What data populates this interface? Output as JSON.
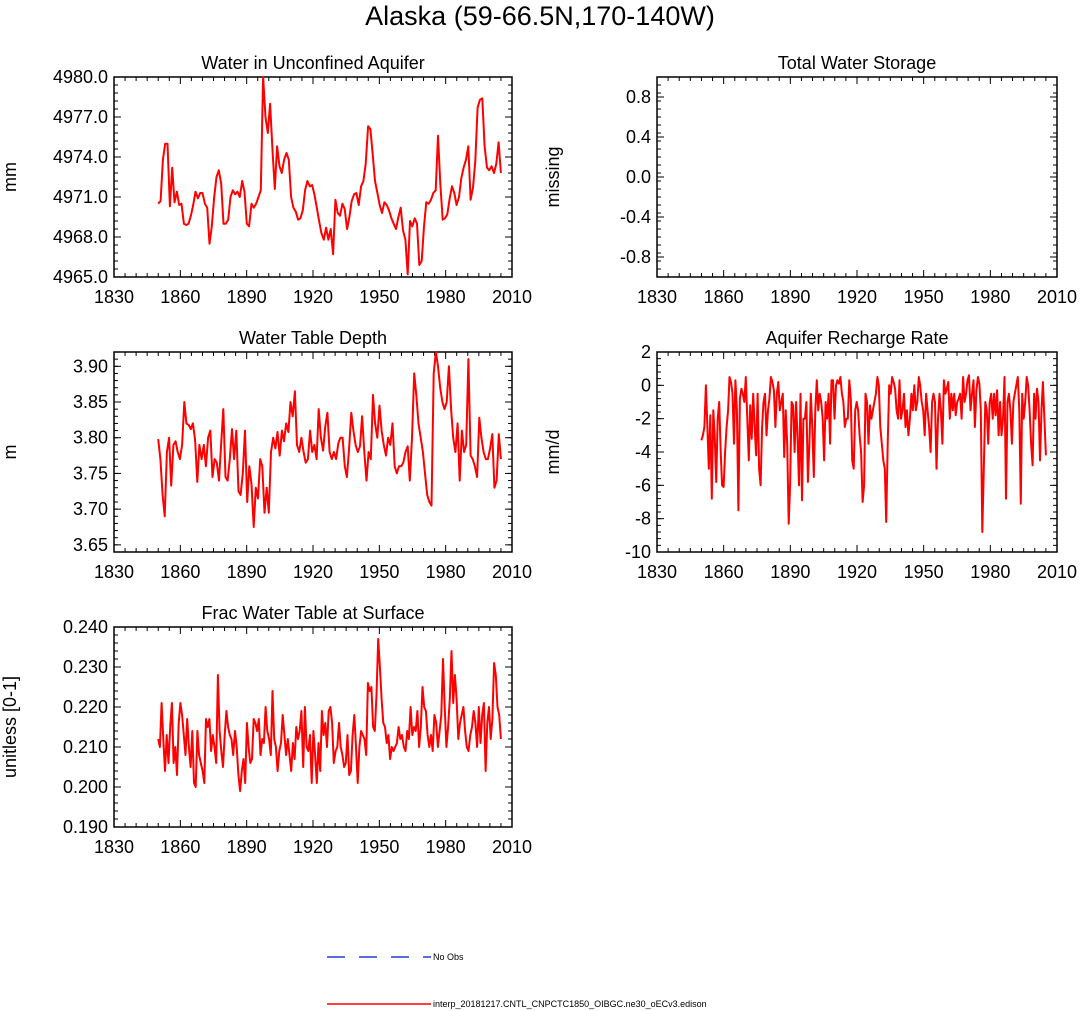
{
  "figure": {
    "title": "Alaska (59-66.5N,170-140W)",
    "legend": [
      {
        "label": "No Obs",
        "style": "dashed",
        "color": "#1f3fd6"
      },
      {
        "label": "interp_20181217.CNTL_CNPCTC1850_OIBGC.ne30_oECv3.edison",
        "style": "solid",
        "color": "#ff0000"
      }
    ]
  },
  "chart_data": [
    {
      "type": "line",
      "title": "Water in Unconfined Aquifer",
      "ylabel": "mm",
      "xlim": [
        1830,
        2010
      ],
      "ylim": [
        4965.0,
        4980.0
      ],
      "xticks": [
        1830,
        1860,
        1890,
        1920,
        1950,
        1980,
        2010
      ],
      "yticks": [
        4965.0,
        4968.0,
        4971.0,
        4974.0,
        4977.0,
        4980.0
      ],
      "ytick_labels": [
        "4965.0",
        "4968.0",
        "4971.0",
        "4974.0",
        "4977.0",
        "4980.0"
      ],
      "series": [
        {
          "name": "interp_20181217.CNTL_CNPCTC1850_OIBGC.ne30_oECv3.edison",
          "color": "#ff0000",
          "x_start": 1850,
          "values": [
            4970.5,
            4970.7,
            4973.8,
            4975.0,
            4975.0,
            4970.3,
            4973.2,
            4970.6,
            4971.4,
            4970.4,
            4970.5,
            4969.0,
            4968.9,
            4969.0,
            4969.6,
            4970.4,
            4971.4,
            4970.9,
            4971.3,
            4971.3,
            4970.5,
            4970.2,
            4967.5,
            4968.8,
            4971.0,
            4972.5,
            4973.0,
            4972.0,
            4969.0,
            4969.0,
            4969.3,
            4971.0,
            4971.5,
            4971.2,
            4971.4,
            4971.0,
            4972.2,
            4971.4,
            4969.0,
            4968.8,
            4970.5,
            4970.2,
            4970.5,
            4971.0,
            4971.5,
            4980.0,
            4977.0,
            4975.8,
            4978.0,
            4974.5,
            4971.6,
            4974.8,
            4973.3,
            4972.8,
            4973.8,
            4974.3,
            4973.8,
            4971.0,
            4970.2,
            4969.9,
            4969.3,
            4969.4,
            4970.0,
            4971.5,
            4972.2,
            4971.8,
            4971.9,
            4971.2,
            4970.2,
            4969.2,
            4968.3,
            4967.8,
            4968.7,
            4967.8,
            4968.6,
            4966.7,
            4970.8,
            4969.8,
            4969.6,
            4970.5,
            4970.1,
            4968.6,
            4969.5,
            4970.7,
            4971.2,
            4971.3,
            4970.4,
            4971.8,
            4972.2,
            4973.5,
            4976.3,
            4976.1,
            4974.2,
            4972.2,
            4971.3,
            4970.4,
            4969.8,
            4970.6,
            4970.4,
            4970.0,
            4969.4,
            4969.0,
            4968.6,
            4969.5,
            4970.2,
            4968.5,
            4967.8,
            4965.2,
            4969.2,
            4968.8,
            4969.4,
            4969.0,
            4965.9,
            4966.2,
            4968.8,
            4970.6,
            4970.5,
            4970.8,
            4971.3,
            4971.5,
            4975.6,
            4972.0,
            4969.3,
            4969.4,
            4969.7,
            4970.9,
            4971.8,
            4971.3,
            4970.4,
            4971.0,
            4972.4,
            4973.2,
            4973.8,
            4974.8,
            4970.8,
            4971.7,
            4973.7,
            4977.7,
            4978.3,
            4978.4,
            4974.8,
            4973.2,
            4973.0,
            4973.3,
            4972.8,
            4973.5,
            4975.1,
            4972.8
          ]
        }
      ]
    },
    {
      "type": "line",
      "title": "Total Water Storage",
      "ylabel": "missing",
      "xlim": [
        1830,
        2010
      ],
      "ylim": [
        -1.0,
        1.0
      ],
      "xticks": [
        1830,
        1860,
        1890,
        1920,
        1950,
        1980,
        2010
      ],
      "yticks": [
        -0.8,
        -0.4,
        0.0,
        0.4,
        0.8
      ],
      "ytick_labels": [
        "-0.8",
        "-0.4",
        "0.0",
        "0.4",
        "0.8"
      ],
      "series": []
    },
    {
      "type": "line",
      "title": "Water Table Depth",
      "ylabel": "m",
      "xlim": [
        1830,
        2010
      ],
      "ylim": [
        3.64,
        3.92
      ],
      "xticks": [
        1830,
        1860,
        1890,
        1920,
        1950,
        1980,
        2010
      ],
      "yticks": [
        3.65,
        3.7,
        3.75,
        3.8,
        3.85,
        3.9
      ],
      "ytick_labels": [
        "3.65",
        "3.70",
        "3.75",
        "3.80",
        "3.85",
        "3.90"
      ],
      "series": [
        {
          "name": "interp_20181217.CNTL_CNPCTC1850_OIBGC.ne30_oECv3.edison",
          "color": "#ff0000",
          "x_start": 1850,
          "values": [
            3.798,
            3.77,
            3.72,
            3.69,
            3.78,
            3.8,
            3.733,
            3.79,
            3.795,
            3.78,
            3.77,
            3.79,
            3.85,
            3.82,
            3.818,
            3.812,
            3.82,
            3.797,
            3.738,
            3.79,
            3.77,
            3.79,
            3.76,
            3.8,
            3.81,
            3.745,
            3.77,
            3.765,
            3.74,
            3.79,
            3.84,
            3.745,
            3.74,
            3.77,
            3.812,
            3.77,
            3.81,
            3.725,
            3.72,
            3.75,
            3.81,
            3.71,
            3.76,
            3.735,
            3.675,
            3.73,
            3.715,
            3.77,
            3.76,
            3.695,
            3.73,
            3.695,
            3.78,
            3.8,
            3.785,
            3.808,
            3.775,
            3.81,
            3.795,
            3.82,
            3.808,
            3.85,
            3.83,
            3.865,
            3.79,
            3.78,
            3.8,
            3.78,
            3.765,
            3.77,
            3.81,
            3.78,
            3.79,
            3.77,
            3.84,
            3.8,
            3.782,
            3.815,
            3.835,
            3.78,
            3.77,
            3.78,
            3.77,
            3.792,
            3.8,
            3.8,
            3.76,
            3.745,
            3.785,
            3.835,
            3.81,
            3.79,
            3.78,
            3.788,
            3.83,
            3.78,
            3.74,
            3.78,
            3.77,
            3.86,
            3.82,
            3.8,
            3.845,
            3.81,
            3.79,
            3.775,
            3.8,
            3.79,
            3.82,
            3.76,
            3.75,
            3.76,
            3.76,
            3.765,
            3.78,
            3.788,
            3.74,
            3.8,
            3.89,
            3.86,
            3.82,
            3.8,
            3.78,
            3.75,
            3.72,
            3.71,
            3.705,
            3.89,
            3.92,
            3.9,
            3.87,
            3.85,
            3.84,
            3.85,
            3.9,
            3.84,
            3.8,
            3.78,
            3.82,
            3.74,
            3.81,
            3.78,
            3.79,
            3.91,
            3.775,
            3.77,
            3.76,
            3.745,
            3.828,
            3.8,
            3.78,
            3.77,
            3.77,
            3.785,
            3.805,
            3.73,
            3.74,
            3.805,
            3.77
          ]
        }
      ]
    },
    {
      "type": "line",
      "title": "Aquifer Recharge Rate",
      "ylabel": "mm/d",
      "xlim": [
        1830,
        2010
      ],
      "ylim": [
        -10,
        2
      ],
      "xticks": [
        1830,
        1860,
        1890,
        1920,
        1950,
        1980,
        2010
      ],
      "yticks": [
        -10,
        -8,
        -6,
        -4,
        -2,
        0,
        2
      ],
      "ytick_labels": [
        "-10",
        "-8",
        "-6",
        "-4",
        "-2",
        "0",
        "2"
      ],
      "series": [
        {
          "name": "interp_20181217.CNTL_CNPCTC1850_OIBGC.ne30_oECv3.edison",
          "color": "#ff0000",
          "x_start": 1850,
          "values": [
            -3.3,
            -3.0,
            -2.5,
            0.0,
            -2.5,
            -5.0,
            -1.8,
            -6.8,
            -1.5,
            -3.0,
            -5.8,
            -2.0,
            -1.0,
            -4.0,
            -6.0,
            -6.1,
            -4.0,
            -2.5,
            -1.5,
            0.5,
            0.2,
            -0.5,
            -3.5,
            0.3,
            -1.5,
            -7.5,
            -0.8,
            -0.2,
            -0.5,
            -1.0,
            0.5,
            -2.0,
            -4.5,
            -1.2,
            -3.2,
            -0.5,
            -2.5,
            -4.2,
            -0.5,
            -5.0,
            -6.0,
            -2.5,
            -1.0,
            -0.5,
            -3.0,
            -1.5,
            -0.8,
            0.5,
            0.2,
            -0.3,
            -2.5,
            -0.5,
            0.2,
            -1.5,
            -1.0,
            -0.5,
            -4.3,
            -1.5,
            -3.5,
            -8.3,
            -6.0,
            -1.0,
            -1.2,
            -4.0,
            -1.0,
            -3.0,
            -6.0,
            -0.5,
            -6.9,
            -2.0,
            -2.0,
            -1.0,
            -5.8,
            -3.5,
            -0.5,
            -2.5,
            -5.5,
            -1.5,
            0.3,
            -1.5,
            -0.5,
            -1.0,
            -2.0,
            -4.5,
            -1.0,
            -2.0,
            -0.5,
            -3.5,
            0.3,
            0.3,
            -2.0,
            0.0,
            0.3,
            0.1,
            0.5,
            -0.5,
            -1.0,
            -2.5,
            -2.0,
            -2.0,
            0.3,
            -0.8,
            -4.5,
            -5.0,
            -1.5,
            -1.0,
            -1.5,
            -3.0,
            -4.0,
            -7.0,
            -6.0,
            -0.5,
            -1.0,
            -3.5,
            -1.2,
            -2.0,
            -1.5,
            -1.0,
            -0.5,
            0.5,
            0.0,
            -2.5,
            -3.5,
            -4.5,
            -5.0,
            -8.2,
            -3.5,
            0.0,
            -0.5,
            0.5,
            0.2,
            -0.2,
            -1.5,
            -2.0,
            0.3,
            -2.0,
            -1.5,
            -0.5,
            -2.5,
            -1.5,
            -3.0,
            -2.0,
            -0.5,
            -1.5,
            0.0,
            -1.5,
            -1.0,
            0.5,
            0.0,
            -1.0,
            -1.5,
            -3.0,
            -0.5,
            -1.5,
            -2.5,
            -4.0,
            -1.0,
            -0.5,
            -1.0,
            -5.0,
            -2.0,
            -0.5,
            -1.5,
            -3.5,
            0.3,
            -0.5,
            -0.2,
            0.2,
            -2.0,
            -0.5,
            -1.5,
            -0.5,
            -1.8,
            -1.0,
            -0.8,
            -0.5,
            -2.0,
            0.5,
            -1.0,
            -0.5,
            0.3,
            0.6,
            -1.5,
            -0.5,
            0.3,
            -2.5,
            -0.3,
            0.5,
            0.1,
            -1.5,
            -8.8,
            -5.0,
            -1.0,
            -1.5,
            -3.5,
            -1.0,
            -0.5,
            -2.0,
            -0.5,
            -1.8,
            -0.3,
            -3.0,
            -1.0,
            -3.0,
            -2.0,
            0.5,
            -6.8,
            -1.0,
            -0.5,
            -1.5,
            -3.5,
            -1.0,
            -0.5,
            0.0,
            0.5,
            -1.5,
            -7.1,
            -0.5,
            -2.0,
            -1.0,
            0.5,
            0.0,
            -1.5,
            -3.5,
            -4.8,
            -0.5,
            -2.0,
            -0.2,
            -1.0,
            -4.5,
            -1.5,
            0.2,
            -2.0,
            -4.2
          ]
        }
      ]
    },
    {
      "type": "line",
      "title": "Frac Water Table at Surface",
      "ylabel": "unitless [0-1]",
      "xlim": [
        1830,
        2010
      ],
      "ylim": [
        0.19,
        0.24
      ],
      "xticks": [
        1830,
        1860,
        1890,
        1920,
        1950,
        1980,
        2010
      ],
      "yticks": [
        0.19,
        0.2,
        0.21,
        0.22,
        0.23,
        0.24
      ],
      "ytick_labels": [
        "0.190",
        "0.200",
        "0.210",
        "0.220",
        "0.230",
        "0.240"
      ],
      "series": [
        {
          "name": "interp_20181217.CNTL_CNPCTC1850_OIBGC.ne30_oECv3.edison",
          "color": "#ff0000",
          "x_start": 1850,
          "values": [
            0.212,
            0.21,
            0.221,
            0.212,
            0.204,
            0.213,
            0.206,
            0.215,
            0.221,
            0.206,
            0.21,
            0.203,
            0.216,
            0.221,
            0.218,
            0.213,
            0.208,
            0.217,
            0.21,
            0.205,
            0.214,
            0.201,
            0.2,
            0.214,
            0.208,
            0.206,
            0.204,
            0.201,
            0.217,
            0.215,
            0.217,
            0.209,
            0.213,
            0.21,
            0.206,
            0.228,
            0.214,
            0.209,
            0.205,
            0.213,
            0.219,
            0.215,
            0.213,
            0.212,
            0.208,
            0.214,
            0.21,
            0.203,
            0.199,
            0.204,
            0.207,
            0.201,
            0.216,
            0.21,
            0.206,
            0.207,
            0.217,
            0.216,
            0.214,
            0.217,
            0.208,
            0.212,
            0.211,
            0.22,
            0.214,
            0.212,
            0.208,
            0.224,
            0.212,
            0.21,
            0.204,
            0.209,
            0.211,
            0.218,
            0.213,
            0.208,
            0.212,
            0.208,
            0.204,
            0.211,
            0.207,
            0.215,
            0.212,
            0.214,
            0.219,
            0.205,
            0.22,
            0.21,
            0.209,
            0.213,
            0.201,
            0.214,
            0.208,
            0.201,
            0.211,
            0.204,
            0.219,
            0.213,
            0.216,
            0.21,
            0.219,
            0.22,
            0.216,
            0.206,
            0.209,
            0.21,
            0.216,
            0.21,
            0.208,
            0.205,
            0.206,
            0.213,
            0.203,
            0.204,
            0.213,
            0.218,
            0.21,
            0.201,
            0.21,
            0.214,
            0.213,
            0.212,
            0.208,
            0.226,
            0.224,
            0.225,
            0.215,
            0.214,
            0.223,
            0.237,
            0.23,
            0.222,
            0.216,
            0.215,
            0.211,
            0.213,
            0.207,
            0.21,
            0.209,
            0.21,
            0.211,
            0.215,
            0.212,
            0.213,
            0.21,
            0.209,
            0.214,
            0.212,
            0.22,
            0.213,
            0.215,
            0.214,
            0.219,
            0.21,
            0.215,
            0.225,
            0.22,
            0.219,
            0.213,
            0.21,
            0.213,
            0.209,
            0.218,
            0.216,
            0.21,
            0.214,
            0.218,
            0.232,
            0.22,
            0.21,
            0.215,
            0.222,
            0.234,
            0.221,
            0.228,
            0.222,
            0.212,
            0.216,
            0.218,
            0.22,
            0.214,
            0.21,
            0.209,
            0.213,
            0.215,
            0.219,
            0.216,
            0.21,
            0.22,
            0.211,
            0.218,
            0.221,
            0.204,
            0.216,
            0.22,
            0.212,
            0.217,
            0.231,
            0.228,
            0.22,
            0.218,
            0.212
          ]
        }
      ]
    }
  ]
}
